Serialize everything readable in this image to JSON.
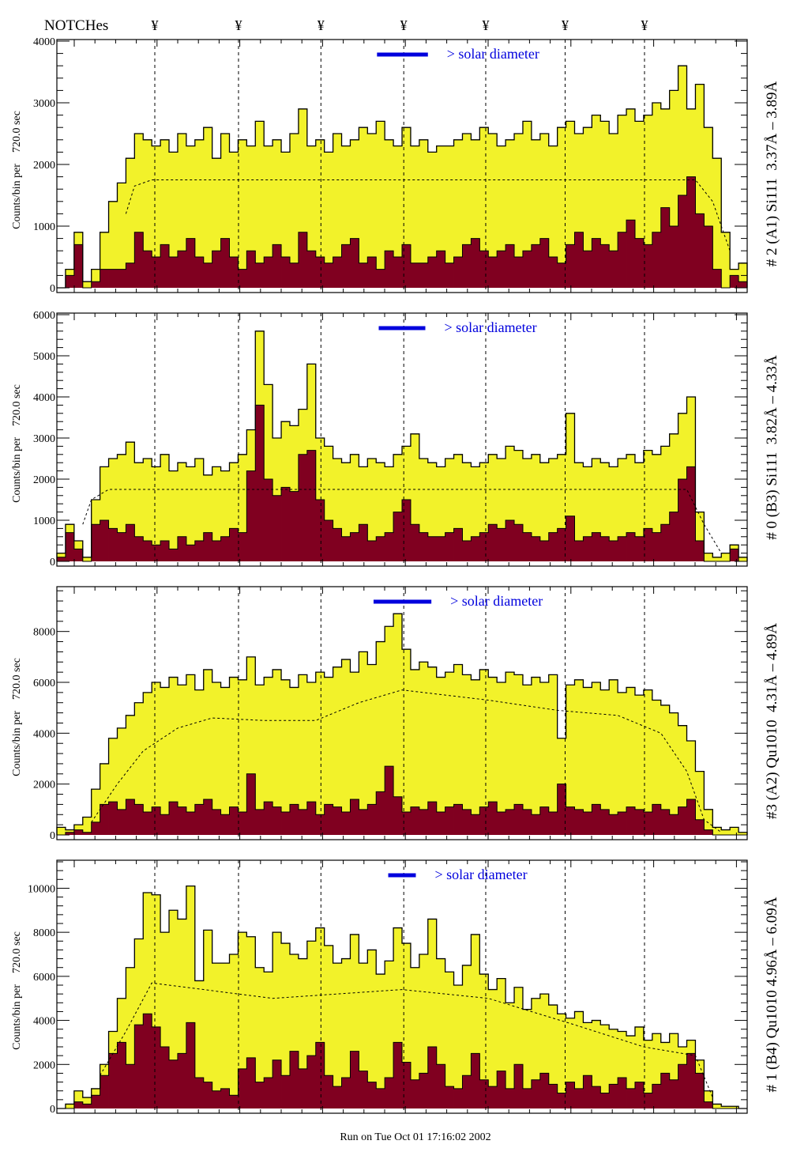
{
  "header": {
    "notches_label": "NOTCHes",
    "notch_symbol": "¥"
  },
  "footer": {
    "run_text": "Run on Tue Oct 01 17:16:02 2002"
  },
  "colors": {
    "total": "#f2f22a",
    "component": "#800020",
    "outline": "#000000",
    "solar_marker": "#0000dd"
  },
  "chart_data": [
    {
      "type": "bar",
      "title": "# 2 (A1) Si111  3.37Å – 3.89Å",
      "ylabel": "Counts/bin per    720.0 sec",
      "solar_label": "> solar diameter",
      "solar_bins": [
        37.1,
        43.0
      ],
      "notch_bins": [
        11.35,
        21.05,
        30.6,
        40.2,
        49.7,
        58.9,
        68.1
      ],
      "ylim": [
        0,
        4000
      ],
      "yticks": [
        0,
        1000,
        2000,
        3000,
        4000
      ],
      "grid": false,
      "total": [
        0,
        300,
        900,
        100,
        300,
        900,
        1400,
        1700,
        2100,
        2500,
        2400,
        2300,
        2400,
        2200,
        2500,
        2300,
        2400,
        2600,
        2100,
        2500,
        2200,
        2400,
        2300,
        2700,
        2300,
        2400,
        2200,
        2500,
        2900,
        2300,
        2400,
        2200,
        2500,
        2300,
        2400,
        2600,
        2500,
        2700,
        2400,
        2300,
        2600,
        2300,
        2400,
        2200,
        2300,
        2300,
        2400,
        2500,
        2400,
        2600,
        2500,
        2300,
        2400,
        2500,
        2700,
        2400,
        2500,
        2300,
        2600,
        2700,
        2500,
        2600,
        2800,
        2700,
        2500,
        2800,
        2900,
        2700,
        2800,
        3000,
        2900,
        3200,
        3600,
        2900,
        3300,
        2600,
        2100,
        900,
        300,
        400
      ],
      "component": [
        0,
        200,
        700,
        0,
        100,
        300,
        300,
        300,
        400,
        900,
        600,
        500,
        700,
        500,
        600,
        800,
        500,
        400,
        600,
        800,
        500,
        300,
        600,
        400,
        500,
        700,
        500,
        400,
        900,
        600,
        500,
        400,
        500,
        700,
        800,
        400,
        500,
        300,
        600,
        500,
        700,
        400,
        400,
        500,
        600,
        400,
        500,
        700,
        800,
        600,
        500,
        600,
        700,
        500,
        600,
        700,
        800,
        500,
        400,
        700,
        900,
        600,
        800,
        700,
        600,
        900,
        1100,
        800,
        700,
        900,
        1300,
        1000,
        1500,
        1800,
        1200,
        1000,
        300,
        0,
        200,
        100
      ],
      "reference": [
        [
          8,
          1200
        ],
        [
          9,
          1650
        ],
        [
          11,
          1750
        ],
        [
          74,
          1750
        ],
        [
          76,
          1400
        ],
        [
          78,
          600
        ]
      ]
    },
    {
      "type": "bar",
      "title": "# 0 (B3) Si111  3.82Å – 4.33Å",
      "ylabel": "Counts/bin per    720.0 sec",
      "solar_label": "> solar diameter",
      "solar_bins": [
        37.3,
        42.7
      ],
      "notch_bins": [
        11.35,
        21.05,
        30.6,
        40.2,
        49.7,
        58.9,
        68.1
      ],
      "ylim": [
        0,
        6000
      ],
      "yticks": [
        0,
        1000,
        2000,
        3000,
        4000,
        5000,
        6000
      ],
      "grid": false,
      "total": [
        200,
        900,
        500,
        100,
        1500,
        2300,
        2500,
        2600,
        2900,
        2400,
        2500,
        2300,
        2600,
        2200,
        2400,
        2300,
        2500,
        2100,
        2300,
        2200,
        2400,
        2600,
        3200,
        5600,
        4300,
        3000,
        3400,
        3300,
        3700,
        4800,
        3000,
        2800,
        2500,
        2400,
        2600,
        2300,
        2500,
        2400,
        2300,
        2600,
        2800,
        3100,
        2500,
        2400,
        2300,
        2500,
        2600,
        2400,
        2300,
        2400,
        2600,
        2500,
        2800,
        2700,
        2500,
        2600,
        2400,
        2500,
        2600,
        3600,
        2400,
        2300,
        2500,
        2400,
        2300,
        2500,
        2600,
        2400,
        2700,
        2600,
        2800,
        3100,
        3600,
        4000,
        1200,
        200,
        100,
        200,
        400,
        100
      ],
      "component": [
        100,
        700,
        300,
        0,
        900,
        1000,
        800,
        700,
        900,
        600,
        500,
        400,
        500,
        300,
        600,
        400,
        500,
        700,
        500,
        600,
        800,
        700,
        2200,
        3800,
        2000,
        1600,
        1800,
        1700,
        2600,
        2700,
        1500,
        1000,
        800,
        600,
        700,
        900,
        500,
        600,
        700,
        1200,
        1500,
        900,
        700,
        600,
        600,
        700,
        800,
        500,
        600,
        700,
        900,
        800,
        1000,
        900,
        700,
        600,
        500,
        700,
        800,
        1100,
        500,
        600,
        700,
        600,
        500,
        600,
        700,
        600,
        800,
        700,
        900,
        1200,
        2000,
        2300,
        500,
        0,
        0,
        0,
        300,
        0
      ],
      "reference": [
        [
          3,
          900
        ],
        [
          4,
          1500
        ],
        [
          6,
          1750
        ],
        [
          73,
          1750
        ],
        [
          75,
          900
        ],
        [
          77,
          200
        ]
      ]
    },
    {
      "type": "bar",
      "title": "#3 (A2) Qu1010  4.31Å – 4.89Å",
      "ylabel": "Counts/bin per    720.0 sec",
      "solar_label": "> solar diameter",
      "solar_bins": [
        36.7,
        43.4
      ],
      "notch_bins": [
        11.35,
        21.05,
        30.6,
        40.2,
        49.7,
        58.9,
        68.1
      ],
      "ylim": [
        0,
        9700
      ],
      "yticks": [
        0,
        2000,
        4000,
        6000,
        8000
      ],
      "grid": false,
      "total": [
        300,
        200,
        400,
        700,
        1800,
        2800,
        3800,
        4200,
        4700,
        5200,
        5600,
        6000,
        5800,
        6200,
        5900,
        6300,
        5700,
        6500,
        6000,
        5800,
        6200,
        6100,
        7000,
        5900,
        6200,
        6500,
        6100,
        5800,
        6300,
        6000,
        6400,
        6200,
        6600,
        6900,
        6400,
        7200,
        6700,
        7600,
        8200,
        8700,
        7300,
        6500,
        6800,
        6600,
        6200,
        6400,
        6700,
        6300,
        6100,
        6500,
        6200,
        6000,
        6400,
        6300,
        5900,
        6200,
        6000,
        6300,
        3800,
        5900,
        6100,
        5800,
        6000,
        5700,
        6100,
        5600,
        5800,
        5500,
        5700,
        5300,
        5100,
        4800,
        4300,
        3700,
        2500,
        1000,
        300,
        200,
        300,
        100
      ],
      "component": [
        0,
        100,
        200,
        100,
        500,
        1200,
        1300,
        1000,
        1400,
        1200,
        900,
        1100,
        800,
        1300,
        1100,
        900,
        1200,
        1400,
        1000,
        800,
        1100,
        900,
        2400,
        1000,
        1300,
        1100,
        900,
        1200,
        1000,
        1300,
        800,
        1200,
        1100,
        900,
        1400,
        1000,
        1200,
        1700,
        2700,
        1500,
        900,
        1100,
        1000,
        1300,
        900,
        1100,
        1200,
        1000,
        800,
        1100,
        1300,
        900,
        1000,
        1200,
        1000,
        800,
        1100,
        900,
        2000,
        1100,
        1000,
        900,
        1200,
        1000,
        800,
        900,
        1100,
        1000,
        900,
        1200,
        1000,
        800,
        1100,
        1400,
        600,
        200,
        0,
        0,
        0,
        0
      ],
      "reference": [
        [
          4,
          500
        ],
        [
          7,
          2000
        ],
        [
          10,
          3300
        ],
        [
          14,
          4200
        ],
        [
          18,
          4600
        ],
        [
          24,
          4500
        ],
        [
          30,
          4500
        ],
        [
          35,
          5200
        ],
        [
          40,
          5700
        ],
        [
          45,
          5500
        ],
        [
          50,
          5300
        ],
        [
          58,
          4900
        ],
        [
          65,
          4700
        ],
        [
          70,
          4000
        ],
        [
          73,
          2500
        ],
        [
          75,
          600
        ],
        [
          77,
          100
        ]
      ]
    },
    {
      "type": "bar",
      "title": "# 1 (B4) Qu1010 4.96Å – 6.09Å",
      "ylabel": "Counts/bin per    720.0 sec",
      "solar_label": "> solar diameter",
      "solar_bins": [
        38.4,
        41.6
      ],
      "notch_bins": [
        11.35,
        21.05,
        30.6,
        40.2,
        49.7,
        58.9,
        68.1
      ],
      "ylim": [
        0,
        11200
      ],
      "yticks": [
        0,
        2000,
        4000,
        6000,
        8000,
        10000
      ],
      "grid": false,
      "total": [
        0,
        200,
        800,
        500,
        900,
        2000,
        3500,
        5000,
        6400,
        7700,
        9800,
        9700,
        8000,
        9000,
        8600,
        10100,
        5800,
        8100,
        6600,
        6600,
        7000,
        8000,
        7800,
        6400,
        6200,
        8000,
        7500,
        7000,
        6800,
        7600,
        8200,
        7400,
        6600,
        6800,
        7900,
        6600,
        7200,
        6100,
        6700,
        8200,
        7500,
        6400,
        7000,
        8600,
        6800,
        6200,
        5600,
        6500,
        7900,
        6100,
        5400,
        5900,
        4800,
        5500,
        4500,
        5000,
        5200,
        4700,
        4300,
        4100,
        4400,
        3900,
        4000,
        3800,
        3600,
        3500,
        3300,
        3700,
        3100,
        3400,
        3000,
        3400,
        2800,
        3100,
        2200,
        800,
        200,
        100,
        100,
        0
      ],
      "component": [
        0,
        0,
        300,
        200,
        600,
        1500,
        2500,
        3000,
        2000,
        3800,
        4300,
        3700,
        2800,
        2200,
        2500,
        3900,
        1400,
        1200,
        800,
        900,
        600,
        1800,
        2300,
        1200,
        1400,
        2200,
        1500,
        2600,
        1800,
        2400,
        3000,
        1500,
        1000,
        1400,
        2600,
        1700,
        1200,
        900,
        1400,
        3000,
        2100,
        1300,
        1600,
        2800,
        2000,
        1000,
        900,
        1500,
        2500,
        1300,
        1000,
        1700,
        900,
        2000,
        900,
        1300,
        1600,
        1100,
        700,
        1200,
        900,
        1500,
        1000,
        700,
        1100,
        1400,
        900,
        1200,
        700,
        1100,
        1600,
        1300,
        2000,
        2500,
        1600,
        300,
        0,
        0,
        0,
        0
      ],
      "reference": [
        [
          5,
          1500
        ],
        [
          8,
          3500
        ],
        [
          11,
          5700
        ],
        [
          15,
          5500
        ],
        [
          25,
          5000
        ],
        [
          40,
          5400
        ],
        [
          50,
          5000
        ],
        [
          60,
          3800
        ],
        [
          68,
          2800
        ],
        [
          74,
          2400
        ],
        [
          76,
          500
        ]
      ]
    }
  ]
}
